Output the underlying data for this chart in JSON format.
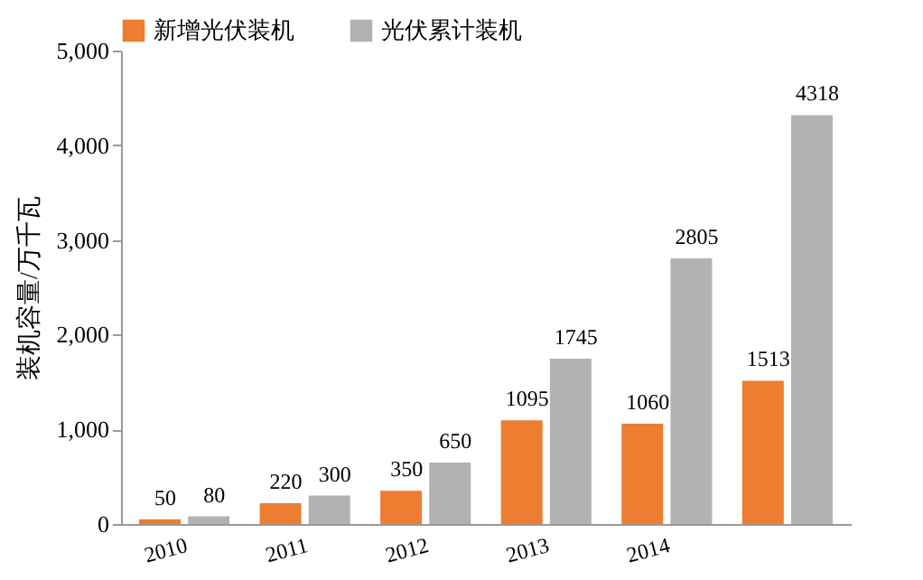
{
  "chart_data": {
    "type": "bar",
    "ylabel": "装机容量/万千瓦",
    "categories": [
      "2010",
      "2011",
      "2012",
      "2013",
      "2014",
      null
    ],
    "series": [
      {
        "name": "新增光伏装机",
        "color": "#ed7d31",
        "values": [
          50,
          220,
          350,
          1095,
          1060,
          1513
        ]
      },
      {
        "name": "光伏累计装机",
        "color": "#b2b2b2",
        "values": [
          80,
          300,
          650,
          1745,
          2805,
          4318
        ]
      }
    ],
    "ylim": [
      0,
      5000
    ],
    "yticks": [
      0,
      {
        "value": 1000,
        "label": "1,000"
      },
      {
        "value": 2000,
        "label": "2,000"
      },
      {
        "value": 3000,
        "label": "3,000"
      },
      {
        "value": 4000,
        "label": "4,000"
      },
      {
        "value": 5000,
        "label": "5,000"
      }
    ],
    "data_labels": true,
    "grid": false,
    "legend": "top"
  }
}
